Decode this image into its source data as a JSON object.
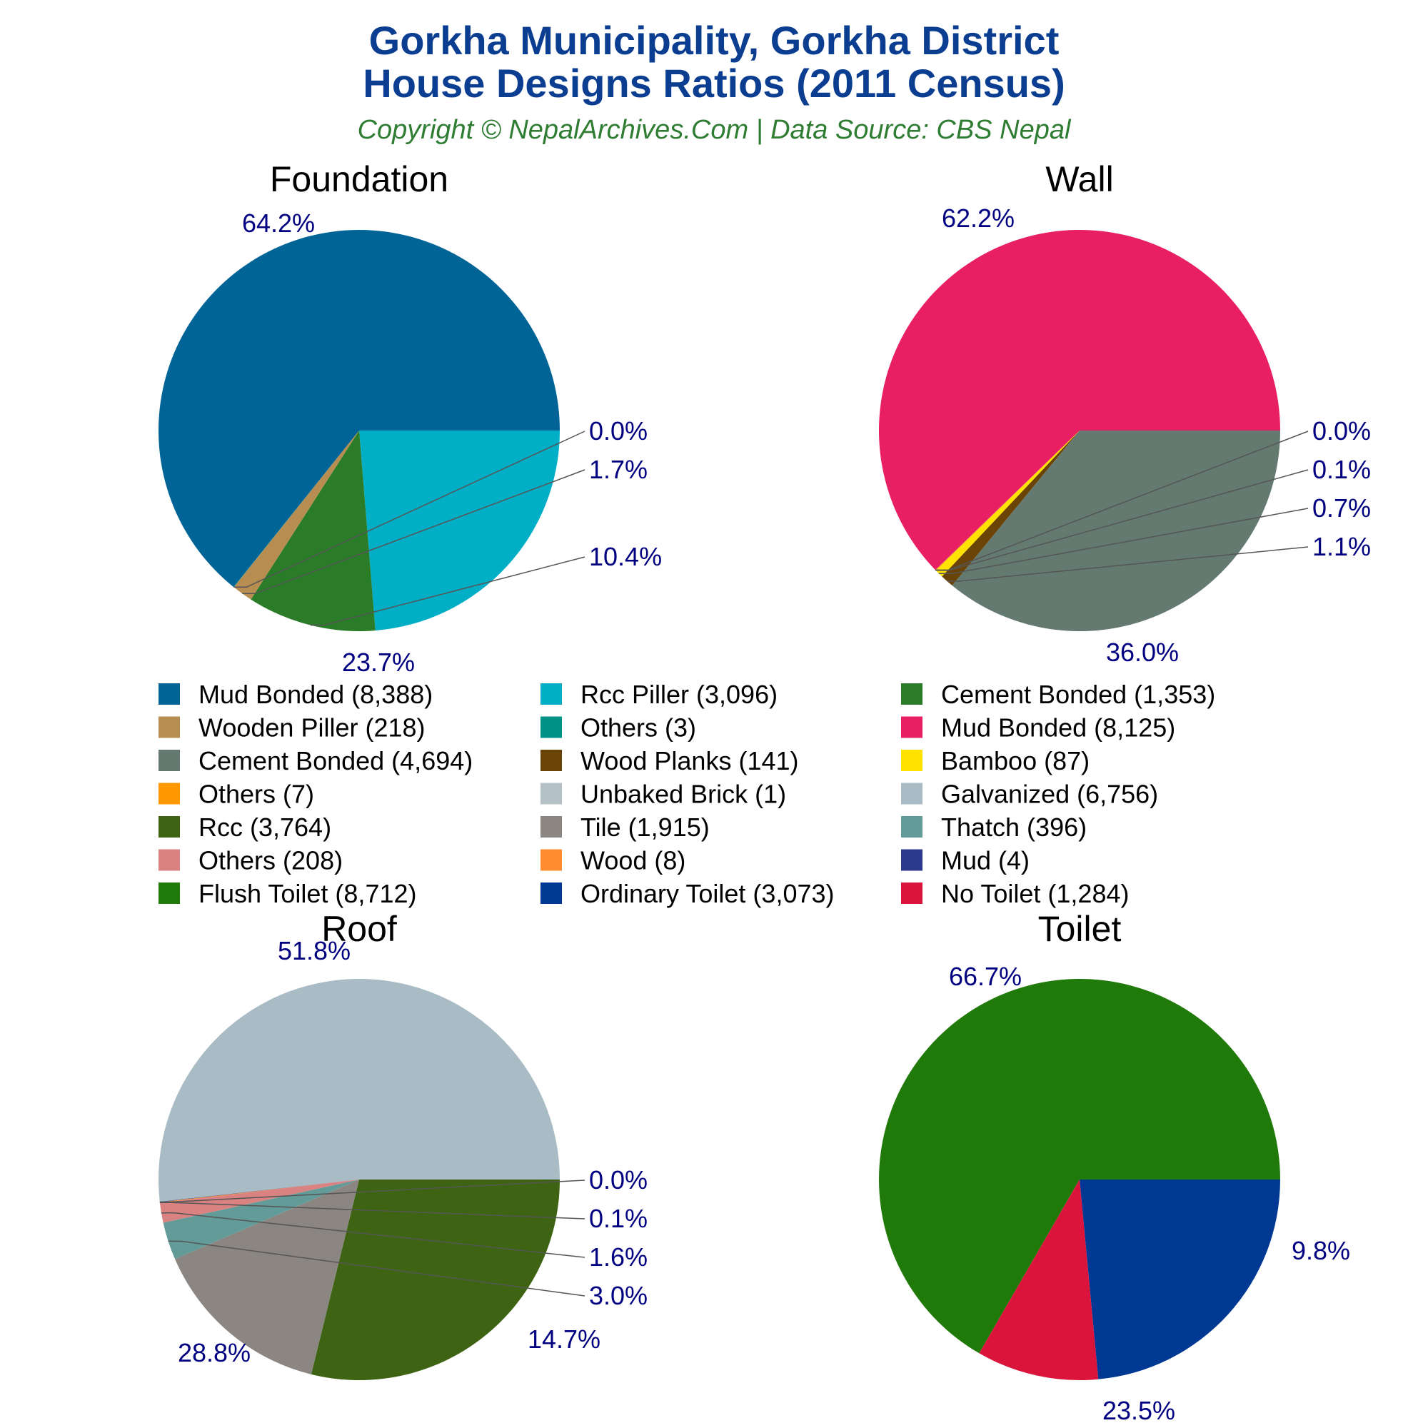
{
  "header": {
    "title_line1": "Gorkha Municipality, Gorkha District",
    "title_line2": "House Designs Ratios (2011 Census)",
    "subtitle": "Copyright © NepalArchives.Com | Data Source: CBS Nepal"
  },
  "chart_data": [
    {
      "type": "pie",
      "title": "Foundation",
      "slices": [
        {
          "label": "Mud Bonded",
          "value": 8388,
          "pct_label": "64.2%",
          "color": "#006496"
        },
        {
          "label": "Rcc Piller",
          "value": 3096,
          "pct_label": "23.7%",
          "color": "#00aec6"
        },
        {
          "label": "Cement Bonded",
          "value": 1353,
          "pct_label": "10.4%",
          "color": "#2a7c29"
        },
        {
          "label": "Wooden Piller",
          "value": 218,
          "pct_label": "1.7%",
          "color": "#b78d51"
        },
        {
          "label": "Others",
          "value": 3,
          "pct_label": "0.0%",
          "color": "#009187"
        }
      ]
    },
    {
      "type": "pie",
      "title": "Wall",
      "slices": [
        {
          "label": "Mud Bonded",
          "value": 8125,
          "pct_label": "62.2%",
          "color": "#e82063"
        },
        {
          "label": "Cement Bonded",
          "value": 4694,
          "pct_label": "36.0%",
          "color": "#647a70"
        },
        {
          "label": "Wood Planks",
          "value": 141,
          "pct_label": "1.1%",
          "color": "#6a4306"
        },
        {
          "label": "Bamboo",
          "value": 87,
          "pct_label": "0.7%",
          "color": "#ffe200"
        },
        {
          "label": "Others",
          "value": 7,
          "pct_label": "0.1%",
          "color": "#ff9800"
        },
        {
          "label": "Unbaked Brick",
          "value": 1,
          "pct_label": "0.0%",
          "color": "#b4c2c8"
        }
      ]
    },
    {
      "type": "pie",
      "title": "Roof",
      "slices": [
        {
          "label": "Galvanized",
          "value": 6756,
          "pct_label": "51.8%",
          "color": "#a9bbc4"
        },
        {
          "label": "Rcc",
          "value": 3764,
          "pct_label": "28.8%",
          "color": "#3e6413"
        },
        {
          "label": "Tile",
          "value": 1915,
          "pct_label": "14.7%",
          "color": "#8b8682"
        },
        {
          "label": "Thatch",
          "value": 396,
          "pct_label": "3.0%",
          "color": "#639b99"
        },
        {
          "label": "Others",
          "value": 208,
          "pct_label": "1.6%",
          "color": "#d98281"
        },
        {
          "label": "Wood",
          "value": 8,
          "pct_label": "0.1%",
          "color": "#ff8c2e"
        },
        {
          "label": "Mud",
          "value": 4,
          "pct_label": "0.0%",
          "color": "#2c3a8e"
        }
      ]
    },
    {
      "type": "pie",
      "title": "Toilet",
      "slices": [
        {
          "label": "Flush Toilet",
          "value": 8712,
          "pct_label": "66.7%",
          "color": "#1f7a0a"
        },
        {
          "label": "Ordinary Toilet",
          "value": 3073,
          "pct_label": "23.5%",
          "color": "#003993"
        },
        {
          "label": "No Toilet",
          "value": 1284,
          "pct_label": "9.8%",
          "color": "#db143c"
        }
      ]
    }
  ],
  "legend": [
    {
      "text": "Mud Bonded (8,388)",
      "color": "#006496"
    },
    {
      "text": "Rcc Piller (3,096)",
      "color": "#00aec6"
    },
    {
      "text": "Cement Bonded (1,353)",
      "color": "#2a7c29"
    },
    {
      "text": "Wooden Piller (218)",
      "color": "#b78d51"
    },
    {
      "text": "Others (3)",
      "color": "#009187"
    },
    {
      "text": "Mud Bonded (8,125)",
      "color": "#e82063"
    },
    {
      "text": "Cement Bonded (4,694)",
      "color": "#647a70"
    },
    {
      "text": "Wood Planks (141)",
      "color": "#6a4306"
    },
    {
      "text": "Bamboo (87)",
      "color": "#ffe200"
    },
    {
      "text": "Others (7)",
      "color": "#ff9800"
    },
    {
      "text": "Unbaked Brick (1)",
      "color": "#b4c2c8"
    },
    {
      "text": "Galvanized (6,756)",
      "color": "#a9bbc4"
    },
    {
      "text": "Rcc (3,764)",
      "color": "#3e6413"
    },
    {
      "text": "Tile (1,915)",
      "color": "#8b8682"
    },
    {
      "text": "Thatch (396)",
      "color": "#639b99"
    },
    {
      "text": "Others (208)",
      "color": "#d98281"
    },
    {
      "text": "Wood (8)",
      "color": "#ff8c2e"
    },
    {
      "text": "Mud (4)",
      "color": "#2c3a8e"
    },
    {
      "text": "Flush Toilet (8,712)",
      "color": "#1f7a0a"
    },
    {
      "text": "Ordinary Toilet (3,073)",
      "color": "#003993"
    },
    {
      "text": "No Toilet (1,284)",
      "color": "#db143c"
    }
  ]
}
